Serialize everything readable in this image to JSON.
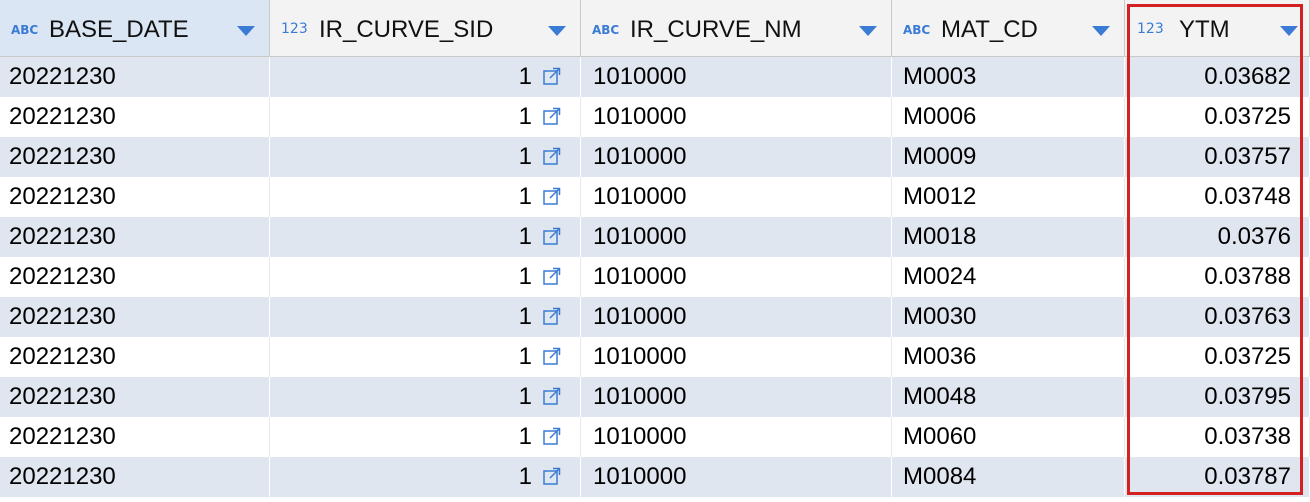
{
  "accent_color": "#3a7bd5",
  "highlight_color": "#d42020",
  "columns": [
    {
      "type_icon": "ABC",
      "label": "BASE_DATE",
      "sort_icon": "chevron-down-icon"
    },
    {
      "type_icon": "123",
      "label": "IR_CURVE_SID",
      "sort_icon": "chevron-down-icon"
    },
    {
      "type_icon": "ABC",
      "label": "IR_CURVE_NM",
      "sort_icon": "chevron-down-icon"
    },
    {
      "type_icon": "ABC",
      "label": "MAT_CD",
      "sort_icon": "chevron-down-icon"
    },
    {
      "type_icon": "123",
      "label": "YTM",
      "sort_icon": "chevron-down-icon"
    }
  ],
  "rows": [
    {
      "base_date": "20221230",
      "ir_curve_sid": "1",
      "ir_curve_nm": "1010000",
      "mat_cd": "M0003",
      "ytm": "0.03682"
    },
    {
      "base_date": "20221230",
      "ir_curve_sid": "1",
      "ir_curve_nm": "1010000",
      "mat_cd": "M0006",
      "ytm": "0.03725"
    },
    {
      "base_date": "20221230",
      "ir_curve_sid": "1",
      "ir_curve_nm": "1010000",
      "mat_cd": "M0009",
      "ytm": "0.03757"
    },
    {
      "base_date": "20221230",
      "ir_curve_sid": "1",
      "ir_curve_nm": "1010000",
      "mat_cd": "M0012",
      "ytm": "0.03748"
    },
    {
      "base_date": "20221230",
      "ir_curve_sid": "1",
      "ir_curve_nm": "1010000",
      "mat_cd": "M0018",
      "ytm": "0.0376"
    },
    {
      "base_date": "20221230",
      "ir_curve_sid": "1",
      "ir_curve_nm": "1010000",
      "mat_cd": "M0024",
      "ytm": "0.03788"
    },
    {
      "base_date": "20221230",
      "ir_curve_sid": "1",
      "ir_curve_nm": "1010000",
      "mat_cd": "M0030",
      "ytm": "0.03763"
    },
    {
      "base_date": "20221230",
      "ir_curve_sid": "1",
      "ir_curve_nm": "1010000",
      "mat_cd": "M0036",
      "ytm": "0.03725"
    },
    {
      "base_date": "20221230",
      "ir_curve_sid": "1",
      "ir_curve_nm": "1010000",
      "mat_cd": "M0048",
      "ytm": "0.03795"
    },
    {
      "base_date": "20221230",
      "ir_curve_sid": "1",
      "ir_curve_nm": "1010000",
      "mat_cd": "M0060",
      "ytm": "0.03738"
    },
    {
      "base_date": "20221230",
      "ir_curve_sid": "1",
      "ir_curve_nm": "1010000",
      "mat_cd": "M0084",
      "ytm": "0.03787"
    }
  ],
  "link_icon": "open-link-icon"
}
